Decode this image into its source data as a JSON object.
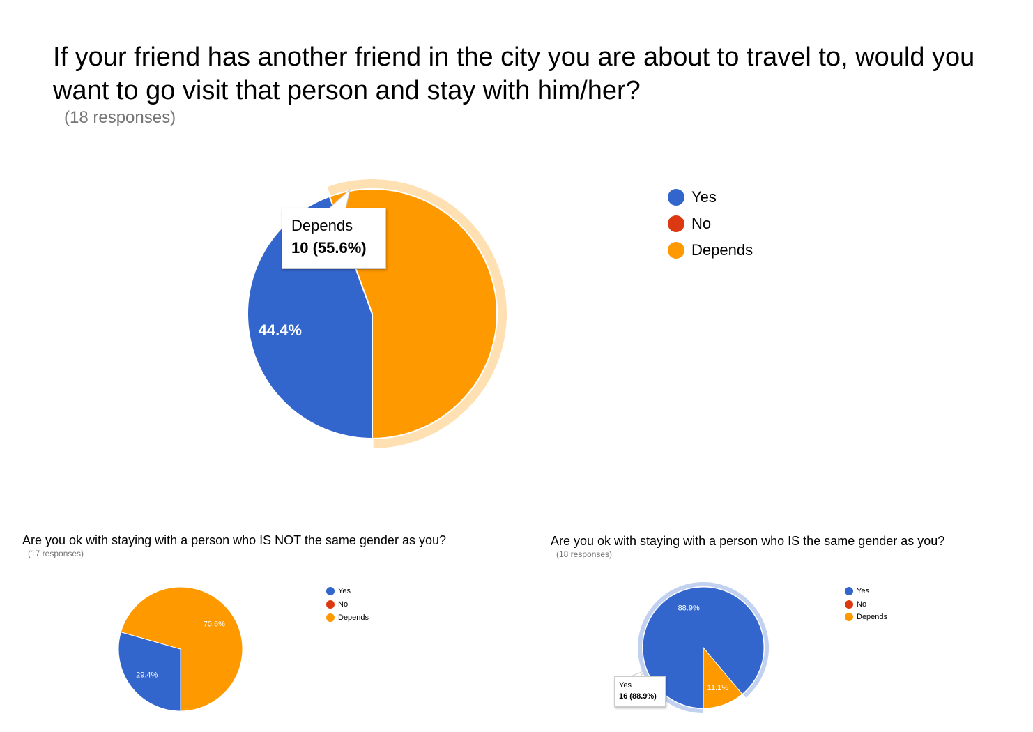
{
  "chart_data": [
    {
      "type": "pie",
      "title": "If your friend has another friend in the city you are about to travel to, would you want to go visit that person and stay with him/her?",
      "subtitle": "(18 responses)",
      "categories": [
        "Yes",
        "No",
        "Depends"
      ],
      "values": [
        8,
        0,
        10
      ],
      "slice_labels": [
        "44.4%",
        "",
        ""
      ],
      "colors": [
        "#3366cc",
        "#dc3912",
        "#ff9900"
      ],
      "highlighted": "Depends",
      "tooltip": {
        "name": "Depends",
        "value": "10 (55.6%)"
      },
      "legend_position": "right"
    },
    {
      "type": "pie",
      "title": "Are you ok with staying with a person who IS NOT the same gender as you?",
      "subtitle": "(17 responses)",
      "categories": [
        "Yes",
        "No",
        "Depends"
      ],
      "values": [
        5,
        0,
        12
      ],
      "slice_labels": [
        "29.4%",
        "",
        "70.6%"
      ],
      "colors": [
        "#3366cc",
        "#dc3912",
        "#ff9900"
      ],
      "legend_position": "right"
    },
    {
      "type": "pie",
      "title": "Are you ok with staying with a person who IS the same gender as you?",
      "subtitle": "(18 responses)",
      "categories": [
        "Yes",
        "No",
        "Depends"
      ],
      "values": [
        16,
        0,
        2
      ],
      "slice_labels": [
        "88.9%",
        "",
        "11.1%"
      ],
      "colors": [
        "#3366cc",
        "#dc3912",
        "#ff9900"
      ],
      "highlighted": "Yes",
      "tooltip": {
        "name": "Yes",
        "value": "16 (88.9%)"
      },
      "legend_position": "right"
    }
  ]
}
